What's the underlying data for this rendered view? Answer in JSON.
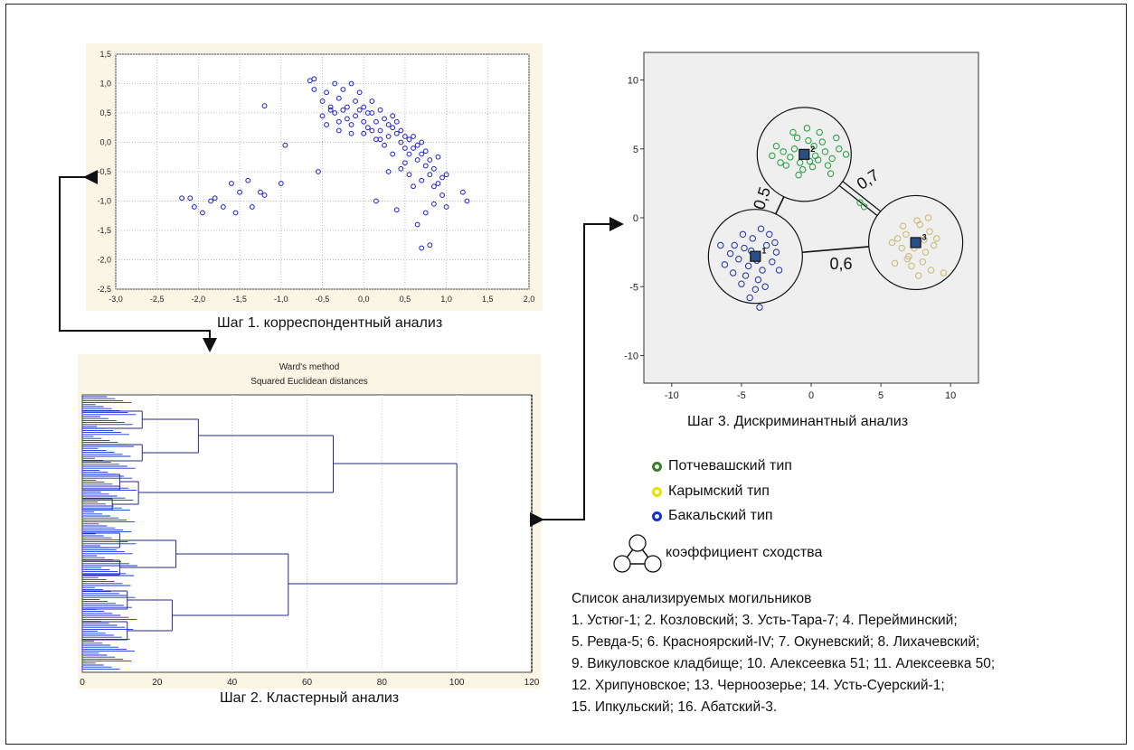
{
  "captions": {
    "step1": "Шаг 1. корреспондентный анализ",
    "step2": "Шаг 2. Кластерный анализ",
    "step3": "Шаг 3. Дискриминантный анализ"
  },
  "dendrogram": {
    "title1": "Ward's method",
    "title2": "Squared Euclidean distances",
    "x_ticks": [
      "0",
      "20",
      "40",
      "60",
      "80",
      "100",
      "120"
    ],
    "colors": {
      "bg": "#fbf5e6",
      "line": "#2a2a80"
    }
  },
  "legend": {
    "items": [
      {
        "label": "Потчевашский тип",
        "color": "#3a7d2a"
      },
      {
        "label": "Карымский тип",
        "color": "#e9e000"
      },
      {
        "label": "Бакальский тип",
        "color": "#1030d0"
      }
    ],
    "similarity_label": "коэффициент сходства"
  },
  "site_list": {
    "title": "Список анализируемых могильников",
    "lines": [
      "1. Устюг-1; 2. Козловский; 3. Усть-Тара-7; 4. Перейминский;",
      "5. Ревда-5; 6. Красноярский-IV; 7. Окуневский; 8. Лихачевский;",
      "9. Викуловское кладбище; 10. Алексеевка 51; 11. Алексеевка 50;",
      "12. Хрипуновское; 13. Черноозерье; 14. Усть-Суерский-1;",
      "15. Ипкульский; 16. Абатский-3."
    ]
  },
  "chart_data": [
    {
      "type": "scatter",
      "title": "",
      "xlim": [
        -3.0,
        2.0
      ],
      "ylim": [
        -2.5,
        1.5
      ],
      "x_ticks": [
        "-3,0",
        "-2,5",
        "-2,0",
        "-1,5",
        "-1,0",
        "-0,5",
        "0,0",
        "0,5",
        "1,0",
        "1,5",
        "2,0"
      ],
      "y_ticks": [
        "1,5",
        "1,0",
        "0,5",
        "0,0",
        "-0,5",
        "-1,0",
        "-1,5",
        "-2,0",
        "-2,5"
      ],
      "grid": true,
      "marker_color": "#1a1ad8",
      "points": [
        [
          -2.2,
          -0.95
        ],
        [
          -2.05,
          -1.1
        ],
        [
          -2.1,
          -0.95
        ],
        [
          -1.95,
          -1.2
        ],
        [
          -1.85,
          -1.0
        ],
        [
          -1.8,
          -0.95
        ],
        [
          -1.7,
          -1.1
        ],
        [
          -1.6,
          -0.7
        ],
        [
          -1.55,
          -1.2
        ],
        [
          -1.5,
          -0.85
        ],
        [
          -1.4,
          -0.65
        ],
        [
          -1.35,
          -1.1
        ],
        [
          -1.25,
          -0.85
        ],
        [
          -1.2,
          -0.9
        ],
        [
          -1.2,
          0.62
        ],
        [
          -1.0,
          -0.7
        ],
        [
          -0.95,
          -0.05
        ],
        [
          -0.65,
          1.05
        ],
        [
          -0.6,
          1.08
        ],
        [
          -0.55,
          -0.5
        ],
        [
          -0.6,
          0.9
        ],
        [
          -0.5,
          0.7
        ],
        [
          -0.45,
          0.85
        ],
        [
          -0.4,
          0.55
        ],
        [
          -0.35,
          1.0
        ],
        [
          -0.3,
          0.75
        ],
        [
          -0.25,
          0.9
        ],
        [
          -0.2,
          0.6
        ],
        [
          -0.15,
          1.0
        ],
        [
          -0.1,
          0.7
        ],
        [
          -0.05,
          0.85
        ],
        [
          0.0,
          0.6
        ],
        [
          0.05,
          0.5
        ],
        [
          0.1,
          0.7
        ],
        [
          -0.5,
          0.45
        ],
        [
          -0.45,
          0.3
        ],
        [
          -0.4,
          0.6
        ],
        [
          -0.35,
          0.5
        ],
        [
          -0.3,
          0.35
        ],
        [
          -0.25,
          0.55
        ],
        [
          -0.2,
          0.4
        ],
        [
          -0.15,
          0.3
        ],
        [
          -0.1,
          0.45
        ],
        [
          -0.05,
          0.55
        ],
        [
          0.0,
          0.35
        ],
        [
          0.05,
          0.25
        ],
        [
          0.1,
          0.5
        ],
        [
          0.15,
          0.35
        ],
        [
          0.2,
          0.55
        ],
        [
          0.2,
          0.2
        ],
        [
          0.25,
          0.4
        ],
        [
          0.3,
          0.3
        ],
        [
          0.3,
          0.1
        ],
        [
          0.35,
          0.45
        ],
        [
          0.35,
          0.25
        ],
        [
          0.4,
          0.15
        ],
        [
          0.4,
          0.35
        ],
        [
          0.45,
          0.0
        ],
        [
          0.45,
          0.2
        ],
        [
          0.5,
          0.1
        ],
        [
          0.5,
          -0.1
        ],
        [
          0.55,
          0.05
        ],
        [
          0.55,
          -0.2
        ],
        [
          0.6,
          -0.1
        ],
        [
          0.6,
          0.1
        ],
        [
          0.65,
          -0.3
        ],
        [
          0.65,
          -0.05
        ],
        [
          0.7,
          -0.2
        ],
        [
          0.7,
          0.0
        ],
        [
          0.75,
          -0.4
        ],
        [
          0.75,
          -0.15
        ],
        [
          0.8,
          -0.3
        ],
        [
          0.8,
          -0.55
        ],
        [
          0.85,
          -0.45
        ],
        [
          0.9,
          -0.7
        ],
        [
          0.9,
          -0.25
        ],
        [
          0.95,
          -0.6
        ],
        [
          1.0,
          -0.55
        ],
        [
          0.95,
          -0.9
        ],
        [
          1.2,
          -0.85
        ],
        [
          1.25,
          -1.0
        ],
        [
          1.0,
          -1.1
        ],
        [
          0.85,
          -1.05
        ],
        [
          0.75,
          -1.2
        ],
        [
          0.7,
          -1.8
        ],
        [
          0.8,
          -1.75
        ],
        [
          0.65,
          -1.4
        ],
        [
          0.4,
          -1.15
        ],
        [
          0.15,
          -1.0
        ],
        [
          0.3,
          -0.5
        ],
        [
          0.55,
          -0.55
        ],
        [
          0.6,
          -0.75
        ],
        [
          0.7,
          -0.65
        ],
        [
          0.5,
          -0.35
        ],
        [
          0.35,
          -0.2
        ],
        [
          0.25,
          -0.05
        ],
        [
          0.15,
          0.05
        ],
        [
          0.0,
          0.15
        ],
        [
          -0.15,
          0.15
        ],
        [
          -0.3,
          0.2
        ],
        [
          0.1,
          0.2
        ],
        [
          0.2,
          0.05
        ],
        [
          0.45,
          -0.45
        ],
        [
          0.85,
          -0.75
        ]
      ]
    },
    {
      "type": "scatter",
      "title": "",
      "xlim": [
        -12,
        12
      ],
      "ylim": [
        -12,
        12
      ],
      "x_ticks": [
        "-10",
        "-5",
        "0",
        "5",
        "10"
      ],
      "y_ticks": [
        "10",
        "5",
        "0",
        "-5",
        "-10"
      ],
      "grid": false,
      "centroids": [
        {
          "label": "1",
          "x": -4.0,
          "y": -2.8
        },
        {
          "label": "2",
          "x": -0.5,
          "y": 4.6
        },
        {
          "label": "3",
          "x": 7.5,
          "y": -1.8
        }
      ],
      "edges": [
        {
          "from": "1",
          "to": "2",
          "label": "0,5"
        },
        {
          "from": "2",
          "to": "3",
          "label": "0,7"
        },
        {
          "from": "1",
          "to": "3",
          "label": "0,6"
        }
      ],
      "series": [
        {
          "color": "#1e9e3c",
          "points": [
            [
              -0.5,
              4.6
            ],
            [
              -1.2,
              5.0
            ],
            [
              0.2,
              5.2
            ],
            [
              -0.8,
              4.0
            ],
            [
              0.5,
              4.2
            ],
            [
              -1.5,
              4.4
            ],
            [
              1.0,
              4.8
            ],
            [
              -0.2,
              5.6
            ],
            [
              0.8,
              5.5
            ],
            [
              -1.0,
              5.8
            ],
            [
              1.5,
              4.3
            ],
            [
              -2.0,
              4.8
            ],
            [
              0.1,
              3.7
            ],
            [
              -0.6,
              3.5
            ],
            [
              1.2,
              3.8
            ],
            [
              -1.8,
              3.8
            ],
            [
              2.0,
              5.0
            ],
            [
              -2.5,
              5.2
            ],
            [
              0.6,
              6.2
            ],
            [
              -0.3,
              6.5
            ],
            [
              -2.2,
              4.0
            ],
            [
              1.8,
              5.8
            ],
            [
              -1.3,
              6.2
            ],
            [
              0.3,
              4.5
            ],
            [
              -0.1,
              4.1
            ],
            [
              2.5,
              4.6
            ],
            [
              -2.8,
              4.5
            ],
            [
              1.4,
              3.2
            ],
            [
              -0.9,
              3.1
            ],
            [
              3.5,
              1.1
            ],
            [
              3.8,
              0.8
            ]
          ]
        },
        {
          "color": "#c8b870",
          "points": [
            [
              7.5,
              -1.8
            ],
            [
              6.8,
              -1.2
            ],
            [
              8.2,
              -2.5
            ],
            [
              7.0,
              -2.8
            ],
            [
              8.5,
              -1.0
            ],
            [
              6.5,
              -2.2
            ],
            [
              7.8,
              -0.5
            ],
            [
              8.8,
              -2.0
            ],
            [
              6.2,
              -1.5
            ],
            [
              7.2,
              -3.5
            ],
            [
              8.0,
              -3.2
            ],
            [
              9.0,
              -1.5
            ],
            [
              7.6,
              -0.2
            ],
            [
              6.9,
              -3.0
            ],
            [
              8.4,
              0.0
            ],
            [
              9.5,
              -4.0
            ],
            [
              6.0,
              -3.3
            ],
            [
              7.4,
              -2.2
            ],
            [
              8.1,
              -1.6
            ],
            [
              5.8,
              -1.8
            ],
            [
              8.6,
              -3.8
            ],
            [
              7.7,
              -4.2
            ],
            [
              6.6,
              -0.6
            ]
          ]
        },
        {
          "color": "#2030a0",
          "points": [
            [
              -4.0,
              -2.8
            ],
            [
              -4.8,
              -2.2
            ],
            [
              -3.2,
              -2.0
            ],
            [
              -4.5,
              -3.5
            ],
            [
              -3.5,
              -3.8
            ],
            [
              -5.2,
              -3.0
            ],
            [
              -2.8,
              -3.2
            ],
            [
              -4.2,
              -1.5
            ],
            [
              -5.5,
              -2.0
            ],
            [
              -3.0,
              -1.2
            ],
            [
              -4.7,
              -4.2
            ],
            [
              -3.8,
              -4.5
            ],
            [
              -5.8,
              -2.6
            ],
            [
              -2.5,
              -2.5
            ],
            [
              -4.0,
              -5.2
            ],
            [
              -5.0,
              -4.8
            ],
            [
              -3.3,
              -5.0
            ],
            [
              -6.2,
              -3.4
            ],
            [
              -2.3,
              -3.8
            ],
            [
              -3.6,
              -0.8
            ],
            [
              -4.9,
              -1.2
            ],
            [
              -6.5,
              -2.0
            ],
            [
              -3.7,
              -6.5
            ],
            [
              -4.3,
              -2.4
            ],
            [
              -3.9,
              -3.1
            ],
            [
              -5.6,
              -4.0
            ],
            [
              -2.6,
              -1.8
            ],
            [
              -4.4,
              -5.8
            ]
          ]
        }
      ]
    }
  ]
}
